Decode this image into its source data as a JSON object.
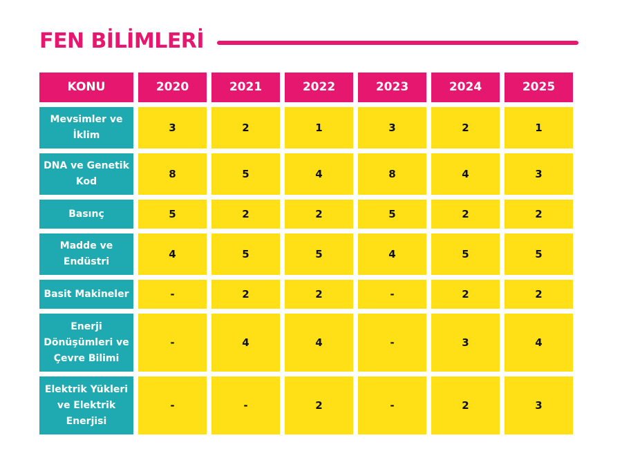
{
  "title": "FEN BİLİMLERİ",
  "table": {
    "header": [
      "KONU",
      "2020",
      "2021",
      "2022",
      "2023",
      "2024",
      "2025"
    ],
    "rows": [
      [
        "Mevsimler ve İklim",
        3,
        2,
        1,
        3,
        2,
        1
      ],
      [
        "DNA ve Genetik Kod",
        8,
        5,
        4,
        8,
        4,
        3
      ],
      [
        "Basınç",
        5,
        2,
        2,
        5,
        2,
        2
      ],
      [
        "Madde ve Endüstri",
        4,
        5,
        5,
        4,
        5,
        5
      ],
      [
        "Basit Makineler",
        "-",
        2,
        2,
        "-",
        2,
        2
      ],
      [
        "Enerji Dönüşümleri ve Çevre Bilimi",
        "-",
        4,
        4,
        "-",
        3,
        4
      ],
      [
        "Elektrik Yükleri ve Elektrik Enerjisi",
        "-",
        "-",
        2,
        "-",
        2,
        3
      ]
    ]
  }
}
